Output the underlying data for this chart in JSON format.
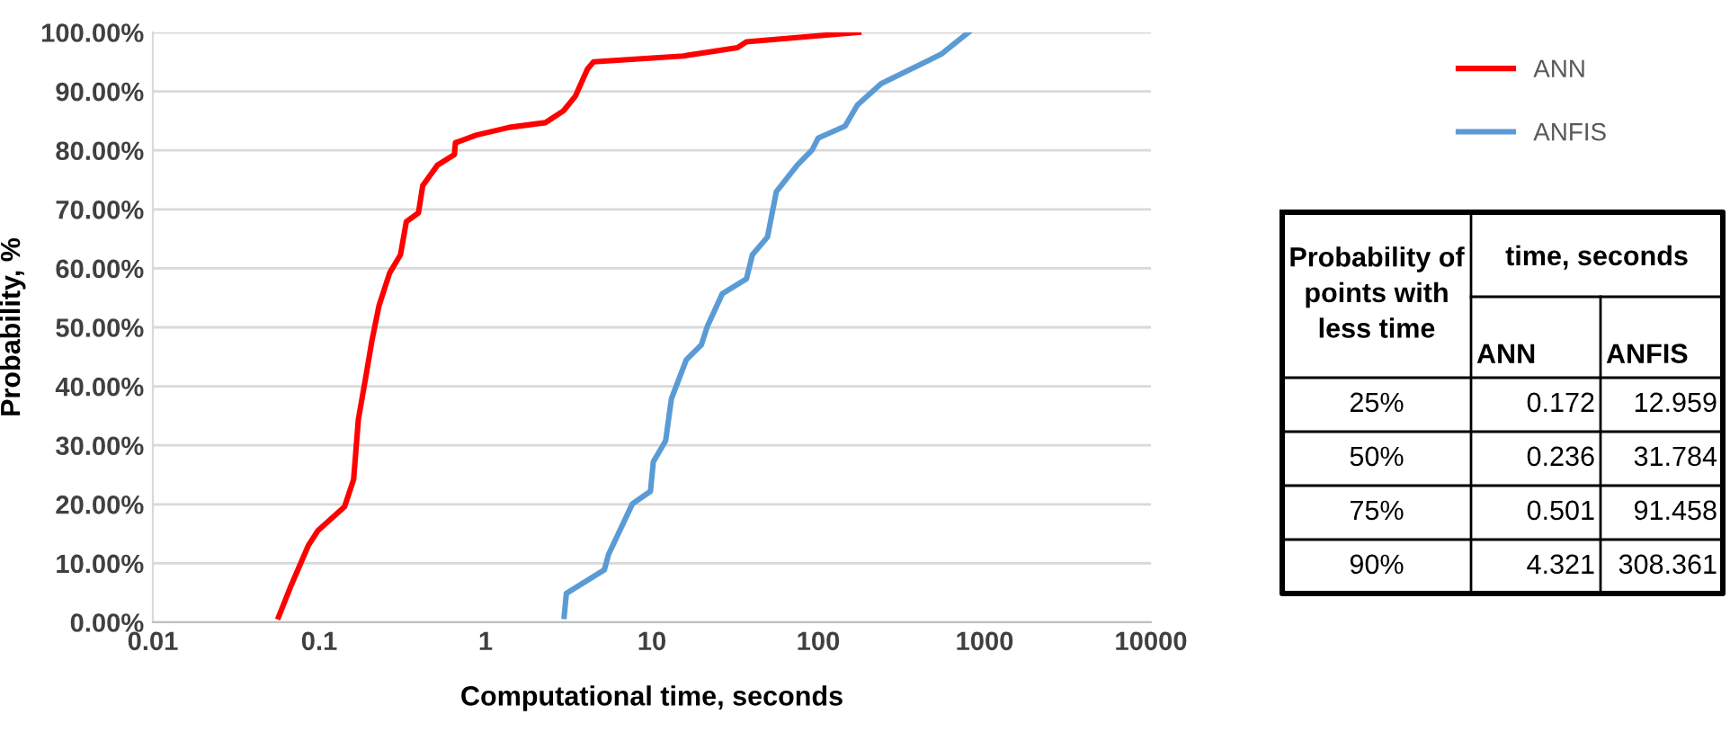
{
  "chart_data": [
    {
      "type": "line",
      "xlabel": "Computational time, seconds",
      "ylabel": "Probability, %",
      "log": "x",
      "xlim": [
        0.01,
        10000
      ],
      "xticks": [
        0.01,
        0.1,
        1,
        10,
        100,
        1000,
        10000
      ],
      "ylim": [
        0,
        100
      ],
      "yticks": [
        {
          "value": 0,
          "label": "0.00%"
        },
        {
          "value": 10,
          "label": "10.00%"
        },
        {
          "value": 20,
          "label": "20.00%"
        },
        {
          "value": 30,
          "label": "30.00%"
        },
        {
          "value": 40,
          "label": "40.00%"
        },
        {
          "value": 50,
          "label": "50.00%"
        },
        {
          "value": 60,
          "label": "60.00%"
        },
        {
          "value": 70,
          "label": "70.00%"
        },
        {
          "value": 80,
          "label": "80.00%"
        },
        {
          "value": 90,
          "label": "90.00%"
        },
        {
          "value": 100,
          "label": "100.00%"
        }
      ],
      "grid": "y",
      "legend": "right",
      "marker": "none",
      "line_style": "solid",
      "series": [
        {
          "name": "ANN",
          "color": "#ff0000",
          "x": [
            0.057,
            0.067,
            0.086,
            0.098,
            0.142,
            0.161,
            0.172,
            0.193,
            0.207,
            0.229,
            0.265,
            0.308,
            0.334,
            0.395,
            0.419,
            0.514,
            0.65,
            0.659,
            0.883,
            1.39,
            2.29,
            2.94,
            3.47,
            4.1,
            4.46,
            15.5,
            32.7,
            37,
            175
          ],
          "values": [
            0.9,
            5.9,
            13,
            15.5,
            19.6,
            24.2,
            34.4,
            42.5,
            47.6,
            53.7,
            59.2,
            62.3,
            67.9,
            69.4,
            74,
            77.5,
            79.3,
            81.3,
            82.6,
            83.9,
            84.7,
            86.7,
            89.2,
            93.8,
            95,
            96,
            97.4,
            98.4,
            100
          ]
        },
        {
          "name": "ANFIS",
          "color": "#5b9bd5",
          "x": [
            2.97,
            3.06,
            5.18,
            5.49,
            7.64,
            9.8,
            10.2,
            12.1,
            13.1,
            16.1,
            19.8,
            21.5,
            26.5,
            37,
            40.2,
            49.5,
            56,
            74.8,
            92,
            100,
            145,
            172,
            239,
            393,
            548,
            800
          ],
          "values": [
            1,
            4.9,
            8.9,
            11.5,
            20.1,
            22.2,
            27.2,
            30.8,
            37.9,
            44.5,
            47,
            50.1,
            55.7,
            58.2,
            62.3,
            65.3,
            73,
            77.5,
            80.1,
            82.1,
            84.1,
            87.7,
            91.3,
            94.3,
            96.3,
            100
          ]
        }
      ]
    },
    {
      "type": "other",
      "annotations": [
        "Probability of\npoints with\nless time",
        "time, seconds",
        "ANN",
        "ANFIS",
        "25%",
        "0.172",
        "12.959",
        "50%",
        "0.236",
        "31.784",
        "75%",
        "0.501",
        "91.458",
        "90%",
        "4.321",
        "308.361"
      ]
    }
  ]
}
